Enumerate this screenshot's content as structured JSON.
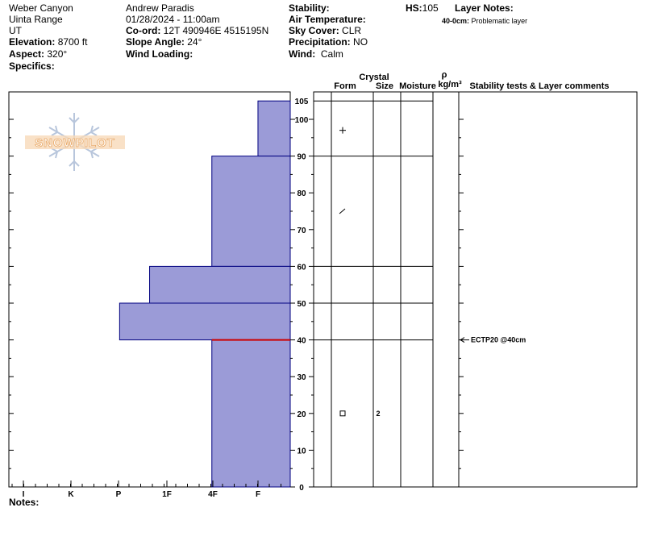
{
  "site": {
    "location": "Weber Canyon",
    "range": "Uinta Range",
    "state": "UT",
    "elevation_label": "Elevation:",
    "elevation_value": "8700 ft",
    "aspect_label": "Aspect:",
    "aspect_value": "320°",
    "specifics_label": "Specifics:"
  },
  "observer": {
    "name": "Andrew Paradis",
    "datetime": "01/28/2024 - 11:00am",
    "coord_label": "Co-ord:",
    "coord_value": "12T 490946E 4515195N",
    "slope_label": "Slope Angle:",
    "slope_value": "24°",
    "wind_loading_label": "Wind Loading:"
  },
  "conditions": {
    "stability_label": "Stability:",
    "air_temp_label": "Air Temperature:",
    "sky_label": "Sky Cover:",
    "sky_value": "CLR",
    "precip_label": "Precipitation:",
    "precip_value": "NO",
    "wind_label": "Wind:",
    "wind_value": "Calm"
  },
  "hs": {
    "label": "HS:",
    "value": "105"
  },
  "layer_notes": {
    "label": "Layer Notes:",
    "items": [
      {
        "depth": "40-0cm:",
        "text": "Problematic layer"
      }
    ]
  },
  "watermark": {
    "text": "SNOWPILOT"
  },
  "notes_label": "Notes:",
  "table_headers": {
    "crystal": "Crystal",
    "form": "Form",
    "size": "Size",
    "moisture": "Moisture",
    "rho": "ρ",
    "density_unit": "kg/m³",
    "comments": "Stability tests & Layer comments"
  },
  "stability_test": {
    "depth": 40,
    "text": "ECTP20 @40cm"
  },
  "crystal_symbols": [
    {
      "depth": 97,
      "symbol": "+"
    },
    {
      "depth": 75,
      "symbol": "/"
    },
    {
      "depth": 20,
      "symbol": "□",
      "size": "2"
    }
  ],
  "chart_data": {
    "type": "bar",
    "orientation": "horizontal",
    "title": "",
    "xlabel": "",
    "ylabel": "",
    "x_categories": [
      "I",
      "K",
      "P",
      "1F",
      "4F",
      "F"
    ],
    "hardness_scale_note": "0 = right edge (softest), 6 = left edge (hardest)",
    "ylim": [
      0,
      105
    ],
    "y_ticks_major": [
      0,
      10,
      20,
      30,
      40,
      50,
      60,
      70,
      80,
      90,
      100,
      105
    ],
    "layers": [
      {
        "top": 105,
        "bottom": 90,
        "hardness": 0.7
      },
      {
        "top": 90,
        "bottom": 60,
        "hardness": 1.7
      },
      {
        "top": 60,
        "bottom": 50,
        "hardness": 3.05
      },
      {
        "top": 50,
        "bottom": 40,
        "hardness": 3.7
      },
      {
        "top": 40,
        "bottom": 0,
        "hardness": 1.7
      }
    ],
    "layer_boundaries": [
      90,
      60,
      50,
      40
    ],
    "critical_layer_depth": 40,
    "colors": {
      "fill": "#9b9bd7",
      "stroke": "#000080",
      "critical": "#cc0000"
    }
  }
}
